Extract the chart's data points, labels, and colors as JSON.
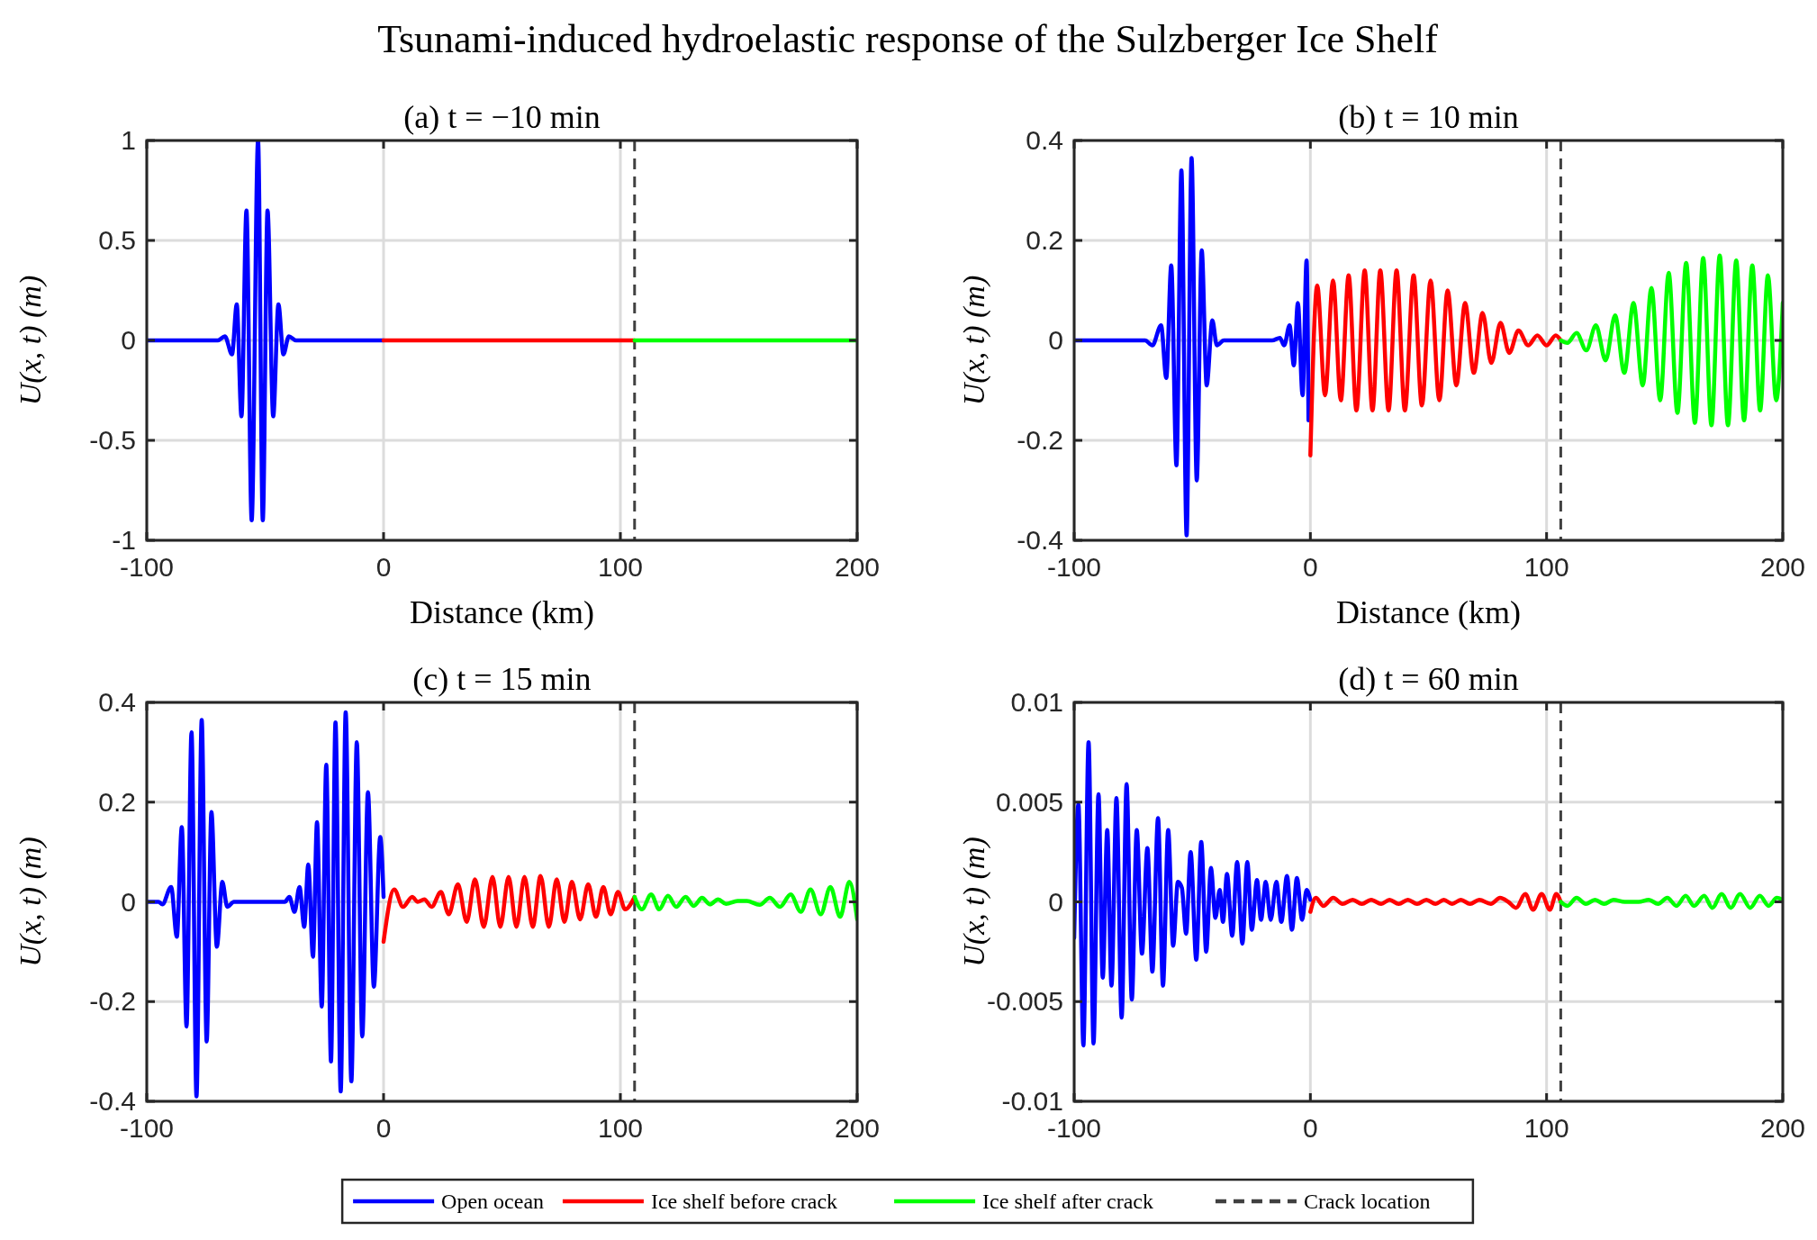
{
  "chart_data": [
    {
      "type": "line",
      "title": "Tsunami-induced hydroelastic response of the Sulzberger Ice Shelf",
      "subtitle": "(a) t = −10 min",
      "xlabel": "Distance (km)",
      "ylabel": "U(x, t) (m)",
      "xlim": [
        -100,
        200
      ],
      "ylim": [
        -1,
        1
      ],
      "xticks": [
        -100,
        0,
        100,
        200
      ],
      "yticks": [
        -1,
        -0.5,
        0,
        0.5,
        1
      ],
      "grid": true,
      "ref_lines": [
        {
          "axis": "x",
          "value": 106,
          "color": "#404040",
          "line_style": "dashed"
        }
      ],
      "series": [
        {
          "color": "#0000ff",
          "x": [
            -100,
            -70,
            -67,
            -64,
            -62,
            -60,
            -57.9,
            -55.7,
            -53,
            -51,
            -49,
            -46.6,
            -44.4,
            -42.3,
            -40,
            -37,
            0
          ],
          "values": [
            0,
            0,
            0.02,
            -0.07,
            0.18,
            -0.38,
            0.65,
            -0.9,
            1.0,
            -0.9,
            0.65,
            -0.38,
            0.18,
            -0.07,
            0.02,
            0,
            0
          ]
        },
        {
          "color": "#ff0000",
          "x": [
            0,
            106
          ],
          "values": [
            0,
            0
          ]
        },
        {
          "color": "#00ff00",
          "x": [
            106,
            200
          ],
          "values": [
            0,
            0
          ]
        }
      ]
    },
    {
      "type": "line",
      "subtitle": "(b) t = 10 min",
      "xlabel": "Distance (km)",
      "ylabel": "U(x, t) (m)",
      "xlim": [
        -100,
        200
      ],
      "ylim": [
        -0.4,
        0.4
      ],
      "xticks": [
        -100,
        0,
        100,
        200
      ],
      "yticks": [
        -0.4,
        -0.2,
        0,
        0.2,
        0.4
      ],
      "grid": true,
      "ref_lines": [
        {
          "axis": "x",
          "value": 106,
          "color": "#404040",
          "line_style": "dashed"
        }
      ],
      "series": [
        {
          "color": "#0000ff",
          "x": [
            -100,
            -70,
            -66.9,
            -63.2,
            -61,
            -58.9,
            -56.7,
            -54.6,
            -52.4,
            -50.3,
            -48.1,
            -46,
            -43.9,
            -41.5,
            -39.6,
            -36.6,
            -16.2,
            -12.9,
            -11.1,
            -8.8,
            -7,
            -5.3,
            -3.3,
            -1.6,
            -0.8
          ],
          "values": [
            0,
            0,
            -0.01,
            0.03,
            -0.075,
            0.15,
            -0.25,
            0.34,
            -0.39,
            0.365,
            -0.28,
            0.18,
            -0.09,
            0.04,
            -0.01,
            0,
            0,
            0.005,
            -0.01,
            0.03,
            -0.05,
            0.075,
            -0.11,
            0.16,
            -0.16
          ]
        },
        {
          "color": "#ff0000",
          "x": [
            0,
            2.9,
            6.2,
            9.6,
            12.9,
            16.2,
            19.5,
            23,
            26.3,
            29.6,
            33.1,
            36.5,
            40,
            43.7,
            47.2,
            50.9,
            54.6,
            58.1,
            61.8,
            65.5,
            69.2,
            72.9,
            76.6,
            80.5,
            84.2,
            88.1,
            92.2,
            96.1,
            100,
            103.9,
            106
          ],
          "values": [
            -0.23,
            0.11,
            -0.11,
            0.12,
            -0.12,
            0.13,
            -0.14,
            0.14,
            -0.14,
            0.14,
            -0.14,
            0.14,
            -0.14,
            0.13,
            -0.13,
            0.12,
            -0.12,
            0.1,
            -0.09,
            0.075,
            -0.065,
            0.055,
            -0.045,
            0.035,
            -0.025,
            0.02,
            -0.01,
            0.01,
            -0.01,
            0.01,
            0
          ]
        },
        {
          "color": "#00ff00",
          "x": [
            106,
            108.8,
            112.7,
            116.8,
            120.9,
            125,
            129,
            132.9,
            136.8,
            140.7,
            144.4,
            148.1,
            151.7,
            155.4,
            159.1,
            162.8,
            166.3,
            169.8,
            173.3,
            176.8,
            180.3,
            183.6,
            187.1,
            190.4,
            193.7,
            197.2,
            200
          ],
          "values": [
            0,
            -0.005,
            0.015,
            -0.02,
            0.03,
            -0.04,
            0.05,
            -0.065,
            0.075,
            -0.09,
            0.105,
            -0.12,
            0.135,
            -0.145,
            0.155,
            -0.165,
            0.165,
            -0.17,
            0.17,
            -0.17,
            0.16,
            -0.16,
            0.15,
            -0.14,
            0.13,
            -0.12,
            0.075
          ]
        }
      ]
    },
    {
      "type": "line",
      "subtitle": "(c) t = 15 min",
      "ylabel": "U(x, t) (m)",
      "xlim": [
        -100,
        200
      ],
      "ylim": [
        -0.4,
        0.4
      ],
      "xticks": [
        -100,
        0,
        100,
        200
      ],
      "yticks": [
        -0.4,
        -0.2,
        0,
        0.2,
        0.4
      ],
      "grid": true,
      "ref_lines": [
        {
          "axis": "x",
          "value": 106,
          "color": "#404040",
          "line_style": "dashed"
        }
      ],
      "series": [
        {
          "color": "#0000ff",
          "x": [
            -100,
            -95,
            -93.4,
            -89.7,
            -87.3,
            -85.2,
            -83.2,
            -81.1,
            -79,
            -76.8,
            -74.7,
            -72.7,
            -70.4,
            -68.1,
            -66,
            -63.2,
            -41.7,
            -39.8,
            -37.6,
            -35.5,
            -33.5,
            -31.8,
            -29.8,
            -28.1,
            -26.1,
            -24.2,
            -22.2,
            -20.3,
            -18.1,
            -16,
            -13.6,
            -11.3,
            -9,
            -6.6,
            -4.1,
            -1.4,
            0
          ],
          "values": [
            0,
            0,
            -0.005,
            0.03,
            -0.07,
            0.15,
            -0.25,
            0.34,
            -0.39,
            0.365,
            -0.28,
            0.18,
            -0.09,
            0.04,
            -0.01,
            0,
            0,
            0.01,
            -0.02,
            0.03,
            -0.05,
            0.075,
            -0.11,
            0.16,
            -0.21,
            0.275,
            -0.32,
            0.36,
            -0.38,
            0.38,
            -0.36,
            0.32,
            -0.27,
            0.22,
            -0.17,
            0.13,
            0.01
          ]
        },
        {
          "color": "#ff0000",
          "x": [
            0,
            4.5,
            8.2,
            12.1,
            14.4,
            17.2,
            20.3,
            24.2,
            27.5,
            31.4,
            35.1,
            38.6,
            42.3,
            46,
            49.3,
            52.8,
            56.1,
            59.5,
            63,
            66.3,
            69.8,
            73.1,
            76.4,
            79.5,
            83,
            86.4,
            89.7,
            92.8,
            95.9,
            99,
            102,
            106
          ],
          "values": [
            -0.08,
            0.025,
            -0.01,
            0.01,
            0,
            0.005,
            -0.01,
            0.02,
            -0.025,
            0.035,
            -0.04,
            0.045,
            -0.05,
            0.05,
            -0.05,
            0.05,
            -0.05,
            0.05,
            -0.05,
            0.052,
            -0.05,
            0.045,
            -0.04,
            0.04,
            -0.035,
            0.035,
            -0.03,
            0.03,
            -0.025,
            0.02,
            -0.015,
            0.01
          ]
        },
        {
          "color": "#00ff00",
          "x": [
            106,
            109.1,
            113,
            116.4,
            120.1,
            123.6,
            127.5,
            131,
            134.5,
            137.8,
            141.3,
            144.6,
            149.5,
            153.4,
            158.8,
            163.1,
            167.4,
            171.9,
            176.2,
            180.3,
            184.6,
            188.7,
            192.8,
            196.7,
            200
          ],
          "values": [
            0.01,
            -0.015,
            0.015,
            -0.015,
            0.012,
            -0.01,
            0.01,
            -0.008,
            0.008,
            -0.005,
            0.005,
            -0.004,
            0.002,
            0.002,
            -0.006,
            0.008,
            -0.01,
            0.015,
            -0.02,
            0.025,
            -0.025,
            0.03,
            -0.03,
            0.04,
            -0.035
          ]
        }
      ]
    },
    {
      "type": "line",
      "subtitle": "(d) t = 60 min",
      "ylabel": "U(x, t) (m)",
      "xlim": [
        -100,
        200
      ],
      "ylim": [
        -0.01,
        0.01
      ],
      "xticks": [
        -100,
        0,
        100,
        200
      ],
      "yticks": [
        -0.01,
        -0.005,
        0,
        0.005,
        0.01
      ],
      "grid": true,
      "legend": "bottom",
      "ref_lines": [
        {
          "axis": "x",
          "value": 106,
          "color": "#404040",
          "line_style": "dashed",
          "label": "Crack location"
        }
      ],
      "series": [
        {
          "name": "Open ocean",
          "color": "#0000ff",
          "x": [
            -100,
            -98.2,
            -96.1,
            -93.9,
            -91.8,
            -89.7,
            -87.9,
            -86,
            -84.2,
            -82.1,
            -79.9,
            -77.8,
            -75.6,
            -73.5,
            -71.3,
            -69,
            -66.9,
            -64.5,
            -62.4,
            -60.2,
            -58.1,
            -56.1,
            -54.4,
            -52.6,
            -50.7,
            -48.3,
            -46.2,
            -44.1,
            -42.1,
            -40.2,
            -38.4,
            -37,
            -35.3,
            -33.1,
            -31,
            -28.8,
            -26.7,
            -24.8,
            -22.6,
            -20.9,
            -18.9,
            -16.8,
            -14.4,
            -12.3,
            -9.9,
            -7.8,
            -5.7,
            -3.5,
            -1.6,
            0
          ],
          "values": [
            -0.0018,
            0.0049,
            -0.0072,
            0.008,
            -0.0071,
            0.0054,
            -0.0038,
            0.0036,
            -0.0042,
            0.0052,
            -0.0058,
            0.0059,
            -0.0049,
            0.0036,
            -0.0026,
            0.0027,
            -0.0035,
            0.0042,
            -0.0042,
            0.0036,
            -0.0022,
            0.001,
            0.0007,
            -0.0016,
            0.0025,
            -0.0029,
            0.003,
            -0.0025,
            0.0017,
            -0.0008,
            0.0006,
            -0.001,
            0.0014,
            -0.0017,
            0.002,
            -0.0021,
            0.002,
            -0.0014,
            0.0011,
            -0.0009,
            0.001,
            -0.0009,
            0.001,
            -0.001,
            0.0013,
            -0.0014,
            0.0012,
            -0.0009,
            0.0006,
            0.0001
          ]
        },
        {
          "name": "Ice shelf before crack",
          "color": "#ff0000",
          "x": [
            0,
            2.3,
            5.5,
            9.7,
            13.6,
            17.9,
            21.8,
            25.7,
            30,
            33.5,
            37.4,
            41.3,
            45.2,
            49.1,
            53,
            56.5,
            60,
            63.7,
            67.6,
            71.5,
            76.4,
            80.3,
            83.8,
            87.1,
            91,
            94.3,
            97.9,
            101.4,
            104.1,
            106
          ],
          "values": [
            -0.0005,
            0.0002,
            -0.0002,
            0.0002,
            -0.0001,
            0.0001,
            -0.0001,
            0.0001,
            -0.0001,
            0.0001,
            -0.0001,
            0.0001,
            -0.0001,
            0.0001,
            -0.0001,
            0.0001,
            -0.0001,
            0.0001,
            -0.0001,
            0.0001,
            -0.0001,
            0.0002,
            0,
            -0.0003,
            0.0004,
            -0.0004,
            0.0004,
            -0.0004,
            0.0004,
            0
          ]
        },
        {
          "name": "Ice shelf after crack",
          "color": "#00ff00",
          "x": [
            106,
            108.8,
            112.7,
            116.6,
            120.5,
            124.4,
            128.3,
            133.1,
            139,
            143.3,
            147.2,
            151.1,
            155,
            158.9,
            162.4,
            166.7,
            170.2,
            174.1,
            178,
            181.9,
            186.2,
            190.3,
            194,
            197.5,
            200
          ],
          "values": [
            0,
            -0.0002,
            0.0002,
            -0.0001,
            0.0001,
            -0.0001,
            0.0001,
            0,
            0,
            0.0001,
            -0.0001,
            0.0002,
            -0.0002,
            0.0003,
            -0.0002,
            0.0003,
            -0.0003,
            0.0004,
            -0.0003,
            0.0004,
            -0.0003,
            0.0003,
            -0.0002,
            0.0002,
            0.0001
          ]
        }
      ]
    }
  ]
}
